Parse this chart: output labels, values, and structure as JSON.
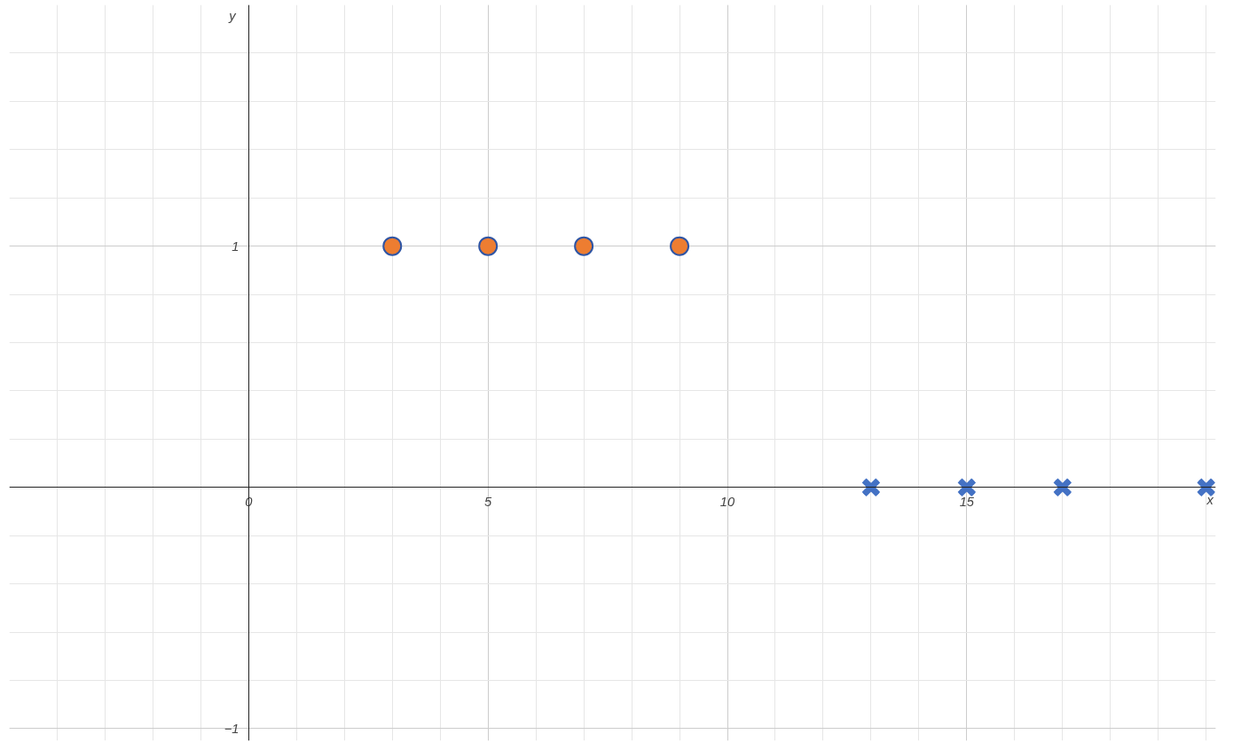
{
  "chart_data": {
    "type": "scatter",
    "xlabel": "x",
    "ylabel": "y",
    "xlim": [
      -5,
      20.2
    ],
    "ylim": [
      -1.05,
      2
    ],
    "xticks": [
      0,
      5,
      10,
      15
    ],
    "yticks": [
      1,
      {
        "value": -1,
        "label": "−1"
      }
    ],
    "grid": true,
    "series": [
      {
        "color": "#ed7d31",
        "marker": "circle",
        "x": [
          3,
          5,
          7,
          9
        ],
        "values": [
          1,
          1,
          1,
          1
        ]
      },
      {
        "color": "#4472c4",
        "marker": "cross",
        "x": [
          13,
          15,
          17,
          20
        ],
        "values": [
          0,
          0,
          0,
          0
        ]
      }
    ]
  }
}
